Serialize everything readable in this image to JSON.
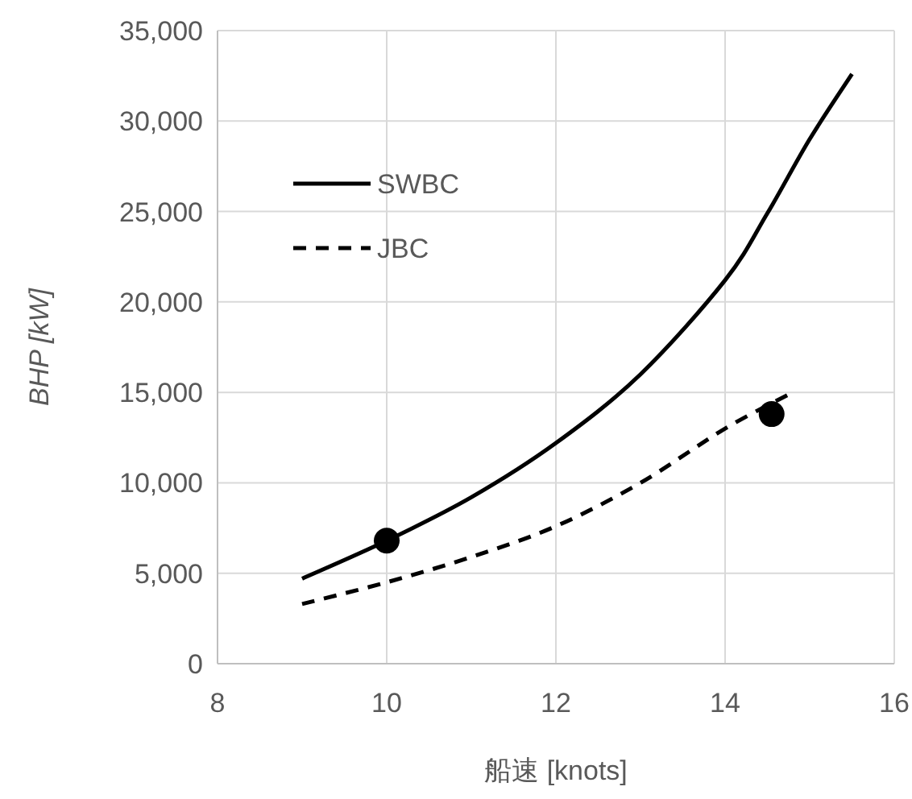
{
  "chart_data": {
    "type": "line",
    "xlabel": "船速 [knots]",
    "ylabel": "BHP [kW]",
    "xlim": [
      8,
      16
    ],
    "xticks": [
      8,
      10,
      12,
      14,
      16
    ],
    "ylim": [
      0,
      35000
    ],
    "yticks": [
      {
        "value": 0,
        "label": "0"
      },
      {
        "value": 5000,
        "label": "5,000"
      },
      {
        "value": 10000,
        "label": "10,000"
      },
      {
        "value": 15000,
        "label": "15,000"
      },
      {
        "value": 20000,
        "label": "20,000"
      },
      {
        "value": 25000,
        "label": "25,000"
      },
      {
        "value": 30000,
        "label": "30,000"
      },
      {
        "value": 35000,
        "label": "35,000"
      }
    ],
    "grid": true,
    "legend": "top left",
    "series": [
      {
        "name": "SWBC",
        "color": "#000000",
        "line_style": "solid",
        "x": [
          9,
          10,
          11,
          12,
          13,
          14,
          14.5,
          15,
          15.5
        ],
        "values": [
          4700,
          6800,
          9200,
          12200,
          16000,
          21200,
          24900,
          29000,
          32600
        ]
      },
      {
        "name": "JBC",
        "color": "#000000",
        "line_style": "dashed",
        "x": [
          9,
          10,
          11,
          12,
          13,
          14,
          14.8
        ],
        "values": [
          3300,
          4500,
          5900,
          7600,
          10000,
          13000,
          15000
        ]
      },
      {
        "type": "scatter",
        "color": "#000000",
        "marker": "circle",
        "x": [
          10,
          14.55
        ],
        "values": [
          6800,
          13800
        ]
      }
    ]
  }
}
